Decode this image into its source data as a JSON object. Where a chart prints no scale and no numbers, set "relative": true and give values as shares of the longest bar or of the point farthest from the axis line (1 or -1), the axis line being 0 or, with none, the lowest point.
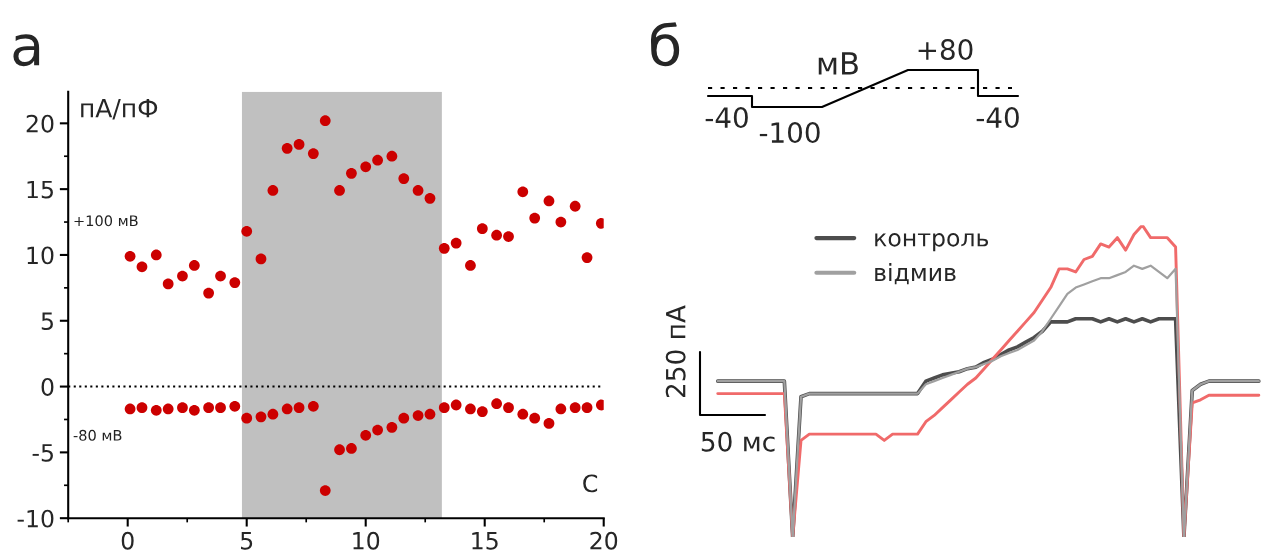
{
  "chart_data": [
    {
      "type": "scatter",
      "title": "а",
      "ylabel": "пА/пФ",
      "xlabel": "С",
      "x": [
        0.1,
        0.6,
        1.2,
        1.7,
        2.3,
        2.8,
        3.4,
        3.9,
        4.5,
        5.0,
        5.6,
        6.1,
        6.7,
        7.2,
        7.8,
        8.3,
        8.9,
        9.4,
        10.0,
        10.5,
        11.1,
        11.6,
        12.2,
        12.7,
        13.3,
        13.8,
        14.4,
        14.9,
        15.5,
        16.0,
        16.6,
        17.1,
        17.7,
        18.2,
        18.8,
        19.3,
        19.9
      ],
      "series": [
        {
          "name": "+100 мВ",
          "color": "#cc0000",
          "values": [
            9.9,
            9.1,
            10.0,
            7.8,
            8.4,
            9.2,
            7.1,
            8.4,
            7.9,
            11.8,
            9.7,
            14.9,
            18.1,
            18.4,
            17.7,
            20.2,
            14.9,
            16.2,
            16.7,
            17.2,
            17.5,
            15.8,
            14.9,
            14.3,
            10.5,
            10.9,
            9.2,
            12.0,
            11.5,
            11.4,
            14.8,
            12.8,
            14.1,
            12.5,
            13.7,
            9.8,
            12.4
          ]
        },
        {
          "name": "-80 мВ",
          "color": "#cc0000",
          "values": [
            -1.7,
            -1.6,
            -1.8,
            -1.7,
            -1.6,
            -1.8,
            -1.6,
            -1.6,
            -1.5,
            -2.4,
            -2.3,
            -2.1,
            -1.7,
            -1.6,
            -1.5,
            -7.9,
            -4.8,
            -4.7,
            -3.7,
            -3.3,
            -3.1,
            -2.4,
            -2.2,
            -2.1,
            -1.6,
            -1.4,
            -1.7,
            -1.9,
            -1.3,
            -1.6,
            -2.1,
            -2.4,
            -2.8,
            -1.7,
            -1.6,
            -1.6,
            -1.4
          ]
        }
      ],
      "xlim": [
        -2.5,
        20
      ],
      "ylim": [
        -10,
        22.4
      ],
      "xticks": [
        0,
        5,
        10,
        15,
        20
      ],
      "yticks": [
        -10,
        -5,
        0,
        5,
        10,
        15,
        20
      ],
      "marker": "circle",
      "grid": false,
      "legend": false,
      "bands": [
        {
          "axis": "x",
          "from": 4.8,
          "to": 13.2,
          "color": "#c0c0c0"
        }
      ],
      "ref_lines": [
        {
          "axis": "y",
          "value": 0,
          "color": "#000000",
          "line_style": "dotted"
        }
      ]
    },
    {
      "type": "line",
      "title": "б",
      "relative": true,
      "legend": "top left",
      "grid": false,
      "line_style": "solid",
      "marker": "none",
      "annotations": [
        "мВ",
        "+80",
        "-40",
        "-100",
        "-40",
        "250 пА",
        "50 мс"
      ],
      "categories": [
        null,
        null,
        null,
        null,
        null,
        null,
        null,
        null,
        null,
        null,
        null,
        null,
        null,
        null,
        null,
        null,
        null,
        null,
        null,
        null,
        null,
        null,
        null,
        null,
        null,
        null,
        null,
        null,
        null,
        null,
        null,
        null,
        null,
        null,
        null,
        null,
        null,
        null,
        null,
        null,
        null,
        null,
        null,
        null,
        null,
        null,
        null,
        null,
        null,
        null,
        null,
        null,
        null,
        null,
        null,
        null,
        null,
        null,
        null,
        null,
        null,
        null,
        null,
        null,
        null,
        null
      ],
      "series": [
        {
          "name": "контроль",
          "color": "#4d4d4d",
          "values": [
            0.5,
            0.5,
            0.5,
            0.5,
            0.5,
            0.5,
            0.5,
            0.5,
            0.5,
            0.0,
            0.45,
            0.46,
            0.46,
            0.46,
            0.46,
            0.46,
            0.46,
            0.46,
            0.46,
            0.46,
            0.46,
            0.46,
            0.46,
            0.46,
            0.46,
            0.5,
            0.51,
            0.52,
            0.525,
            0.53,
            0.54,
            0.545,
            0.56,
            0.57,
            0.585,
            0.6,
            0.61,
            0.625,
            0.64,
            0.66,
            0.69,
            0.69,
            0.69,
            0.7,
            0.7,
            0.7,
            0.69,
            0.7,
            0.69,
            0.7,
            0.69,
            0.7,
            0.69,
            0.7,
            0.7,
            0.7,
            0.0,
            0.47,
            0.49,
            0.5,
            0.5,
            0.5,
            0.5,
            0.5,
            0.5,
            0.5
          ]
        },
        {
          "color": "#f06a6a",
          "values": [
            0.46,
            0.46,
            0.46,
            0.46,
            0.46,
            0.46,
            0.46,
            0.46,
            0.46,
            0.0,
            0.31,
            0.33,
            0.33,
            0.33,
            0.33,
            0.33,
            0.33,
            0.33,
            0.33,
            0.33,
            0.31,
            0.33,
            0.33,
            0.33,
            0.33,
            0.37,
            0.39,
            0.415,
            0.44,
            0.465,
            0.49,
            0.51,
            0.54,
            0.57,
            0.6,
            0.63,
            0.66,
            0.69,
            0.72,
            0.76,
            0.8,
            0.86,
            0.86,
            0.85,
            0.89,
            0.9,
            0.94,
            0.93,
            0.96,
            0.92,
            0.97,
            1.0,
            0.96,
            0.96,
            0.96,
            0.93,
            0.0,
            0.43,
            0.44,
            0.455,
            0.455,
            0.455,
            0.455,
            0.455,
            0.455,
            0.455
          ]
        },
        {
          "name": "відмив",
          "color": "#a0a0a0",
          "values": [
            0.5,
            0.5,
            0.5,
            0.5,
            0.5,
            0.5,
            0.5,
            0.5,
            0.5,
            0.0,
            0.45,
            0.46,
            0.46,
            0.46,
            0.46,
            0.46,
            0.46,
            0.46,
            0.46,
            0.46,
            0.46,
            0.46,
            0.46,
            0.46,
            0.46,
            0.49,
            0.5,
            0.51,
            0.52,
            0.53,
            0.54,
            0.545,
            0.555,
            0.565,
            0.58,
            0.59,
            0.6,
            0.615,
            0.63,
            0.66,
            0.7,
            0.74,
            0.78,
            0.8,
            0.81,
            0.82,
            0.83,
            0.83,
            0.84,
            0.85,
            0.87,
            0.86,
            0.87,
            0.85,
            0.83,
            0.86,
            0.0,
            0.47,
            0.49,
            0.5,
            0.5,
            0.5,
            0.5,
            0.5,
            0.5,
            0.5
          ]
        }
      ]
    }
  ]
}
